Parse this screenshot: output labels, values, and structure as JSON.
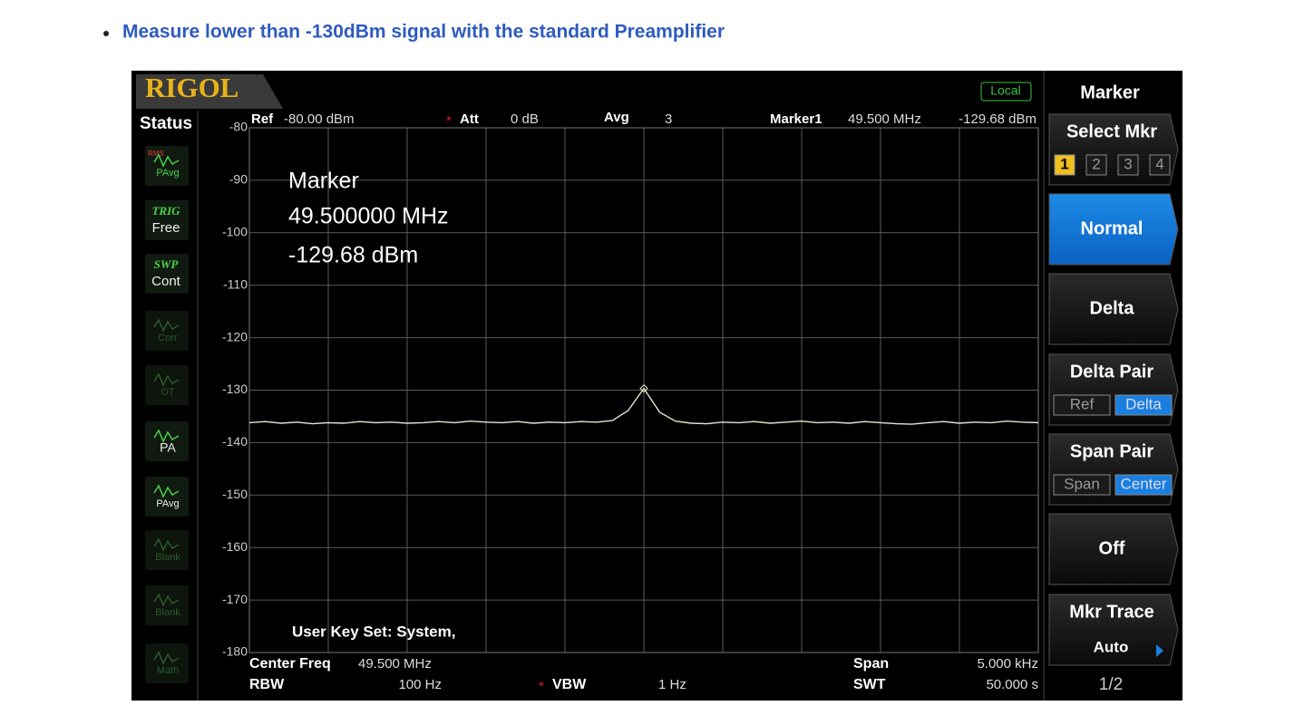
{
  "header": {
    "bullet_text": "Measure lower than -130dBm signal with the standard Preamplifier"
  },
  "screen": {
    "logo": "RIGOL",
    "local": "Local",
    "status": {
      "title": "Status",
      "items": [
        {
          "icon_top": "RMS",
          "label": "PAvg"
        },
        {
          "icon_top": "TRIG",
          "label": "Free"
        },
        {
          "icon_top": "SWP",
          "label": "Cont"
        },
        {
          "label": "Corr"
        },
        {
          "label": "OT"
        },
        {
          "label": "PA"
        },
        {
          "label": "PAvg"
        },
        {
          "label": "Blank"
        },
        {
          "label": "Blank"
        },
        {
          "label": "Math"
        }
      ]
    },
    "top_bar": {
      "ref_label": "Ref",
      "ref_value": "-80.00 dBm",
      "att_label": "Att",
      "att_value": "0 dB",
      "avg_label": "Avg",
      "avg_value": "3",
      "marker_label": "Marker1",
      "marker_freq": "49.500 MHz",
      "marker_amp": "-129.68 dBm"
    },
    "overlay": {
      "marker_title": "Marker",
      "marker_freq": "49.500000 MHz",
      "marker_amp": "-129.68 dBm",
      "user_key": "User Key Set:  System,"
    },
    "bottom_bar": {
      "center_label": "Center Freq",
      "center_value": "49.500 MHz",
      "span_label": "Span",
      "span_value": "5.000 kHz",
      "rbw_label": "RBW",
      "rbw_value": "100 Hz",
      "vbw_label": "VBW",
      "vbw_value": "1 Hz",
      "swt_label": "SWT",
      "swt_value": "50.000 s"
    },
    "menu": {
      "title": "Marker",
      "buttons": [
        {
          "label": "Select Mkr",
          "options": [
            "1",
            "2",
            "3",
            "4"
          ]
        },
        {
          "label": "Normal"
        },
        {
          "label": "Delta"
        },
        {
          "label": "Delta Pair",
          "options": [
            "Ref",
            "Delta"
          ]
        },
        {
          "label": "Span Pair",
          "options": [
            "Span",
            "Center"
          ]
        },
        {
          "label": "Off"
        },
        {
          "label": "Mkr Trace",
          "sub": "Auto"
        }
      ],
      "page": "1/2"
    }
  },
  "chart_data": {
    "type": "line",
    "xlim": [
      49.4975,
      49.5025
    ],
    "ylim": [
      -180,
      -80
    ],
    "yticks": [
      -80,
      -90,
      -100,
      -110,
      -120,
      -130,
      -140,
      -150,
      -160,
      -170,
      -180
    ],
    "grid": true,
    "x": [
      49.4975,
      49.4976,
      49.4977,
      49.4978,
      49.4979,
      49.498,
      49.4981,
      49.4982,
      49.4983,
      49.4984,
      49.4985,
      49.4986,
      49.4987,
      49.4988,
      49.4989,
      49.499,
      49.4991,
      49.4992,
      49.4993,
      49.4994,
      49.4995,
      49.4996,
      49.4997,
      49.4998,
      49.4999,
      49.5,
      49.5001,
      49.5002,
      49.5003,
      49.5004,
      49.5005,
      49.5006,
      49.5007,
      49.5008,
      49.5009,
      49.501,
      49.5011,
      49.5012,
      49.5013,
      49.5014,
      49.5015,
      49.5016,
      49.5017,
      49.5018,
      49.5019,
      49.502,
      49.5021,
      49.5022,
      49.5023,
      49.5024,
      49.5025
    ],
    "series": [
      {
        "color": "#e6e3cf",
        "values": [
          -136.2,
          -136.0,
          -136.3,
          -136.1,
          -136.4,
          -136.2,
          -136.3,
          -136.0,
          -136.2,
          -136.1,
          -136.3,
          -136.2,
          -136.0,
          -136.2,
          -135.9,
          -136.1,
          -136.2,
          -136.0,
          -136.3,
          -136.1,
          -136.2,
          -136.0,
          -136.1,
          -135.8,
          -133.9,
          -129.68,
          -134.2,
          -135.9,
          -136.3,
          -136.4,
          -136.1,
          -136.2,
          -136.0,
          -136.3,
          -136.1,
          -135.9,
          -136.2,
          -136.1,
          -136.3,
          -136.0,
          -136.2,
          -136.4,
          -136.5,
          -136.2,
          -136.0,
          -136.3,
          -136.1,
          -136.2,
          -135.9,
          -136.1,
          -136.2
        ]
      }
    ]
  }
}
